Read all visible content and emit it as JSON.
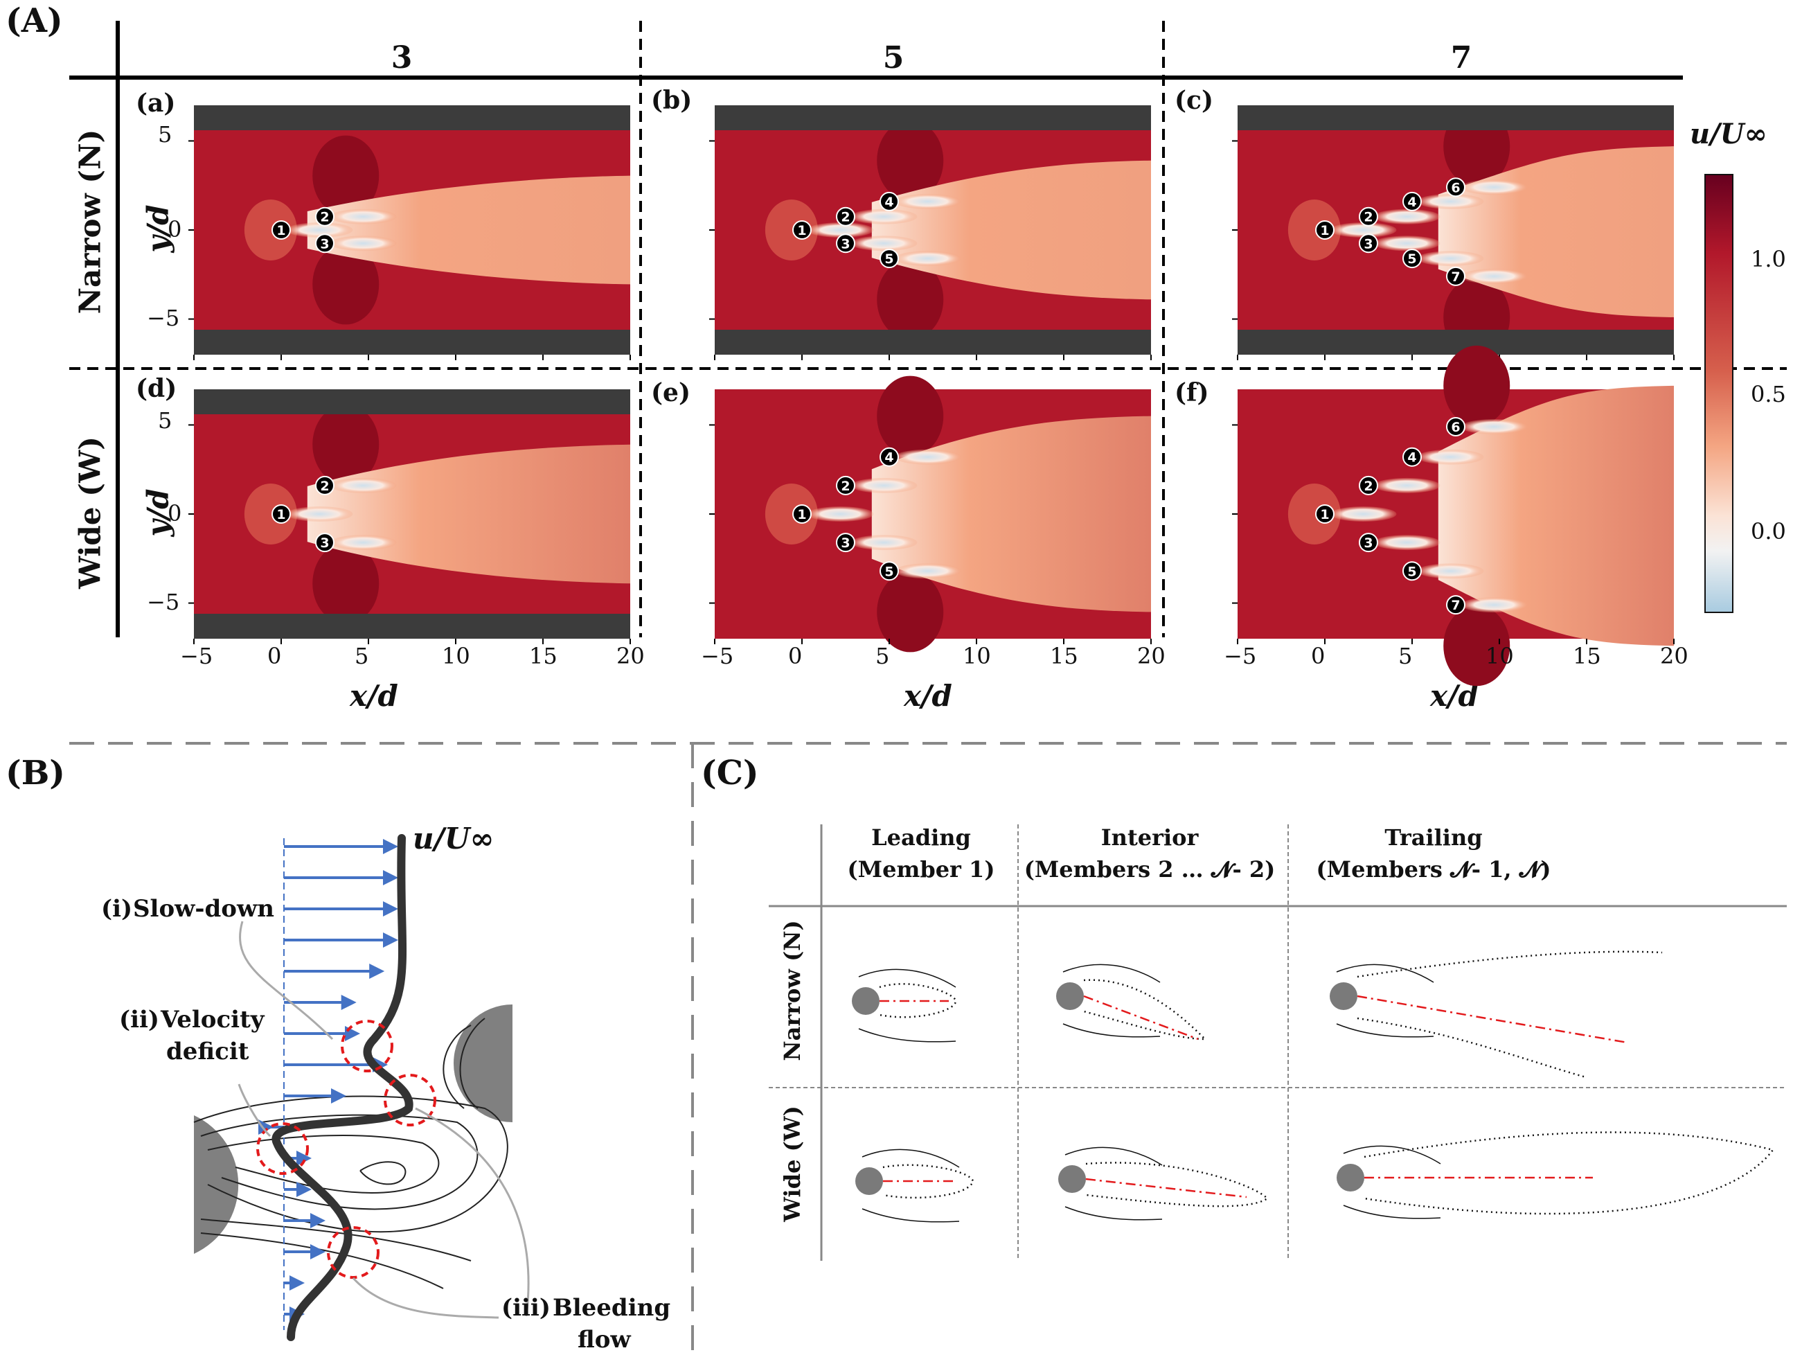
{
  "panel_A": {
    "label": "(A)",
    "columns": [
      "3",
      "5",
      "7"
    ],
    "rows": [
      "Narrow (N)",
      "Wide (W)"
    ],
    "subplots": [
      "(a)",
      "(b)",
      "(c)",
      "(d)",
      "(e)",
      "(f)"
    ],
    "y_label": "y/d",
    "x_label": "x/d",
    "y_ticks": [
      "5",
      "0",
      "−5"
    ],
    "x_ticks": [
      "−5",
      "0",
      "5",
      "10",
      "15",
      "20"
    ],
    "colorbar": {
      "label": "u/U∞",
      "ticks": [
        "1.0",
        "0.5",
        "0.0"
      ],
      "range": [
        -0.3,
        1.3
      ]
    }
  },
  "panel_B": {
    "label": "(B)",
    "profile_label": "u/U∞",
    "annotations": {
      "i_num": "(i)",
      "i_text": "Slow-down",
      "ii_num": "(ii)",
      "ii_line1": "Velocity",
      "ii_line2": "deficit",
      "iii_num": "(iii)",
      "iii_line1": "Bleeding",
      "iii_line2": "flow"
    }
  },
  "panel_C": {
    "label": "(C)",
    "columns": [
      {
        "title": "Leading",
        "subtitle": "(Member 1)"
      },
      {
        "title": "Interior",
        "subtitle": "(Members 2 … 𝓝- 2)"
      },
      {
        "title": "Trailing",
        "subtitle": "(Members 𝓝- 1, 𝓝)"
      }
    ],
    "rows": [
      "Narrow (N)",
      "Wide (W)"
    ]
  },
  "colors": {
    "free_stream": "#b2182b",
    "wall": "#3c3c3c",
    "wake": "#f4a582",
    "arrows": "#4472c4",
    "dashed_red": "#e31a1c"
  },
  "plots": [
    {
      "id": "a",
      "N": 3,
      "wide": false,
      "x_range": [
        -5,
        20
      ],
      "y_range": [
        -7,
        7
      ],
      "members": [
        {
          "n": "1",
          "x": 0,
          "y": 0
        },
        {
          "n": "2",
          "x": 2.5,
          "y": 0.75
        },
        {
          "n": "3",
          "x": 2.5,
          "y": -0.75
        }
      ]
    },
    {
      "id": "b",
      "N": 5,
      "wide": false,
      "x_range": [
        -5,
        20
      ],
      "y_range": [
        -7,
        7
      ],
      "members": [
        {
          "n": "1",
          "x": 0,
          "y": 0
        },
        {
          "n": "2",
          "x": 2.5,
          "y": 0.75
        },
        {
          "n": "3",
          "x": 2.5,
          "y": -0.75
        },
        {
          "n": "4",
          "x": 5,
          "y": 1.6
        },
        {
          "n": "5",
          "x": 5,
          "y": -1.6
        }
      ]
    },
    {
      "id": "c",
      "N": 7,
      "wide": false,
      "x_range": [
        -5,
        20
      ],
      "y_range": [
        -7,
        7
      ],
      "members": [
        {
          "n": "1",
          "x": 0,
          "y": 0
        },
        {
          "n": "2",
          "x": 2.5,
          "y": 0.75
        },
        {
          "n": "3",
          "x": 2.5,
          "y": -0.75
        },
        {
          "n": "4",
          "x": 5,
          "y": 1.6
        },
        {
          "n": "5",
          "x": 5,
          "y": -1.6
        },
        {
          "n": "6",
          "x": 7.5,
          "y": 2.4
        },
        {
          "n": "7",
          "x": 7.5,
          "y": -2.6
        }
      ]
    },
    {
      "id": "d",
      "N": 3,
      "wide": true,
      "x_range": [
        -5,
        20
      ],
      "y_range": [
        -7,
        7
      ],
      "members": [
        {
          "n": "1",
          "x": 0,
          "y": 0
        },
        {
          "n": "2",
          "x": 2.5,
          "y": 1.6
        },
        {
          "n": "3",
          "x": 2.5,
          "y": -1.6
        }
      ]
    },
    {
      "id": "e",
      "N": 5,
      "wide": true,
      "x_range": [
        -5,
        20
      ],
      "y_range": [
        -7,
        7
      ],
      "members": [
        {
          "n": "1",
          "x": 0,
          "y": 0
        },
        {
          "n": "2",
          "x": 2.5,
          "y": 1.6
        },
        {
          "n": "3",
          "x": 2.5,
          "y": -1.6
        },
        {
          "n": "4",
          "x": 5,
          "y": 3.2
        },
        {
          "n": "5",
          "x": 5,
          "y": -3.2
        }
      ]
    },
    {
      "id": "f",
      "N": 7,
      "wide": true,
      "x_range": [
        -5,
        20
      ],
      "y_range": [
        -7,
        7
      ],
      "members": [
        {
          "n": "1",
          "x": 0,
          "y": 0
        },
        {
          "n": "2",
          "x": 2.5,
          "y": 1.6
        },
        {
          "n": "3",
          "x": 2.5,
          "y": -1.6
        },
        {
          "n": "4",
          "x": 5,
          "y": 3.2
        },
        {
          "n": "5",
          "x": 5,
          "y": -3.2
        },
        {
          "n": "6",
          "x": 7.5,
          "y": 4.9
        },
        {
          "n": "7",
          "x": 7.5,
          "y": -5.1
        }
      ]
    }
  ]
}
